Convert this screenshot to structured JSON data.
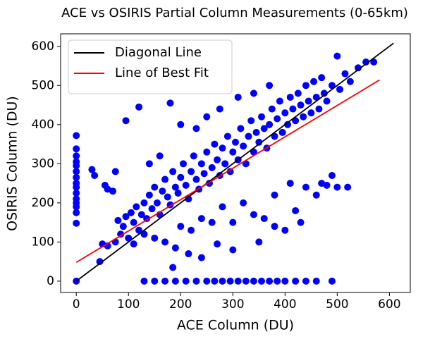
{
  "chart_data": {
    "type": "scatter",
    "title": "ACE vs OSIRIS Partial Column Measurements (0-65km)",
    "xlabel": "ACE Column (DU)",
    "ylabel": "OSIRIS Column (DU)",
    "xlim": [
      -30,
      640
    ],
    "ylim": [
      -29,
      632
    ],
    "xticks": [
      0,
      100,
      200,
      300,
      400,
      500,
      600
    ],
    "yticks": [
      0,
      100,
      200,
      300,
      400,
      500,
      600
    ],
    "grid": false,
    "legend": "upper left",
    "series": [
      {
        "color": "#0000ff",
        "x": [
          0,
          0,
          0,
          0,
          0,
          0,
          0,
          0,
          0,
          0,
          0,
          0,
          0,
          0,
          0,
          0,
          130,
          150,
          170,
          190,
          210,
          230,
          250,
          265,
          280,
          295,
          310,
          325,
          340,
          355,
          370,
          385,
          400,
          420,
          440,
          460,
          490,
          45,
          50,
          60,
          75,
          80,
          85,
          90,
          95,
          100,
          105,
          110,
          115,
          120,
          125,
          130,
          135,
          140,
          145,
          150,
          155,
          160,
          165,
          170,
          175,
          180,
          185,
          190,
          195,
          200,
          205,
          210,
          215,
          220,
          225,
          230,
          235,
          240,
          245,
          250,
          255,
          260,
          265,
          270,
          275,
          280,
          285,
          290,
          295,
          300,
          305,
          310,
          315,
          320,
          325,
          330,
          335,
          340,
          345,
          350,
          355,
          360,
          365,
          370,
          375,
          380,
          385,
          390,
          395,
          400,
          405,
          410,
          415,
          420,
          425,
          430,
          435,
          440,
          445,
          450,
          455,
          460,
          465,
          470,
          475,
          480,
          490,
          500,
          505,
          515,
          525,
          540,
          555,
          570,
          110,
          130,
          150,
          170,
          190,
          200,
          220,
          240,
          260,
          280,
          300,
          320,
          340,
          360,
          380,
          400,
          410,
          420,
          440,
          460,
          470,
          480,
          490,
          500,
          520,
          350,
          380,
          430,
          185,
          300,
          270,
          240,
          215,
          30,
          35,
          55,
          70,
          75,
          95,
          120,
          140,
          160,
          180,
          200,
          230,
          250,
          275,
          310,
          340,
          370,
          60
        ],
        "y": [
          0,
          148,
          175,
          190,
          200,
          210,
          225,
          240,
          250,
          265,
          280,
          295,
          305,
          320,
          338,
          372,
          0,
          0,
          0,
          0,
          0,
          0,
          0,
          0,
          0,
          0,
          0,
          0,
          0,
          0,
          0,
          0,
          0,
          0,
          0,
          0,
          0,
          50,
          95,
          90,
          100,
          155,
          120,
          140,
          165,
          110,
          175,
          150,
          190,
          130,
          170,
          200,
          160,
          220,
          185,
          240,
          200,
          170,
          230,
          260,
          215,
          195,
          280,
          240,
          225,
          265,
          300,
          245,
          210,
          280,
          320,
          260,
          235,
          300,
          275,
          330,
          250,
          290,
          350,
          310,
          270,
          340,
          300,
          370,
          280,
          330,
          355,
          310,
          390,
          345,
          300,
          370,
          410,
          330,
          380,
          355,
          420,
          390,
          340,
          400,
          440,
          370,
          415,
          460,
          380,
          430,
          400,
          470,
          440,
          410,
          480,
          450,
          420,
          500,
          460,
          430,
          510,
          470,
          440,
          520,
          480,
          460,
          500,
          575,
          490,
          530,
          510,
          545,
          560,
          560,
          95,
          120,
          110,
          100,
          85,
          140,
          130,
          160,
          150,
          190,
          150,
          200,
          170,
          160,
          220,
          130,
          250,
          180,
          240,
          220,
          250,
          245,
          270,
          240,
          240,
          100,
          140,
          150,
          35,
          80,
          95,
          60,
          70,
          285,
          270,
          245,
          230,
          280,
          410,
          445,
          300,
          320,
          455,
          400,
          390,
          420,
          440,
          470,
          480,
          500,
          235
        ]
      }
    ],
    "lines": [
      {
        "name": "Diagonal Line",
        "color": "#000000",
        "x": [
          0,
          608
        ],
        "y": [
          0,
          608
        ]
      },
      {
        "name": "Line of Best Fit",
        "color": "#ff0000",
        "x": [
          0,
          581
        ],
        "y": [
          48,
          514
        ]
      }
    ]
  }
}
